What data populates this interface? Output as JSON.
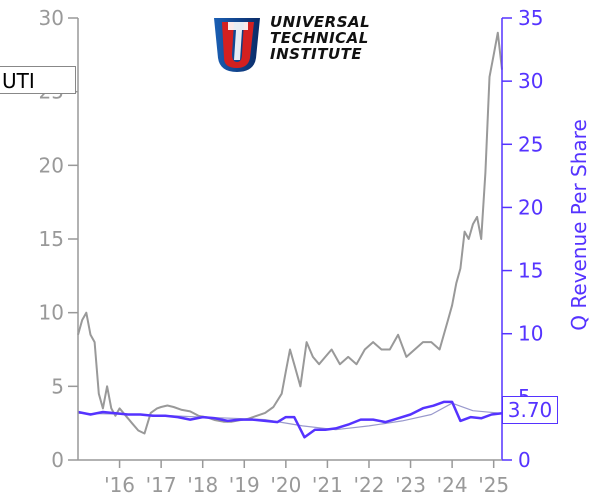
{
  "ticker": "UTI",
  "last_value_label": "3.70",
  "logo": {
    "lines": [
      "UNIVERSAL",
      "TECHNICAL",
      "INSTITUTE"
    ],
    "mark": "U"
  },
  "colors": {
    "price": "#999999",
    "revenue": "#5533ff",
    "revenue_light": "#9999cc"
  },
  "chart_data": {
    "type": "line",
    "title": "",
    "xlabel": "",
    "ylabel_left": "",
    "ylabel_right": "Q Revenue Per Share",
    "x_tick_labels": [
      "'16",
      "'17",
      "'18",
      "'19",
      "'20",
      "'21",
      "'22",
      "'23",
      "'24",
      "'25"
    ],
    "x_range": [
      2015.0,
      2025.2
    ],
    "y_left_range": [
      0,
      30
    ],
    "y_left_ticks": [
      0,
      5,
      10,
      15,
      20,
      25,
      30
    ],
    "y_right_range": [
      0,
      35
    ],
    "y_right_ticks": [
      0,
      5,
      10,
      15,
      20,
      25,
      30,
      35
    ],
    "series": [
      {
        "axis": "left",
        "x": [
          2015.0,
          2015.1,
          2015.2,
          2015.3,
          2015.4,
          2015.5,
          2015.6,
          2015.7,
          2015.8,
          2015.9,
          2016.0,
          2016.15,
          2016.3,
          2016.45,
          2016.6,
          2016.75,
          2016.9,
          2017.0,
          2017.15,
          2017.3,
          2017.5,
          2017.7,
          2017.9,
          2018.1,
          2018.3,
          2018.5,
          2018.7,
          2018.9,
          2019.1,
          2019.3,
          2019.5,
          2019.7,
          2019.9,
          2020.0,
          2020.1,
          2020.2,
          2020.35,
          2020.5,
          2020.65,
          2020.8,
          2020.95,
          2021.1,
          2021.3,
          2021.5,
          2021.7,
          2021.9,
          2022.1,
          2022.3,
          2022.5,
          2022.7,
          2022.9,
          2023.1,
          2023.3,
          2023.5,
          2023.7,
          2023.9,
          2024.0,
          2024.1,
          2024.2,
          2024.3,
          2024.4,
          2024.5,
          2024.6,
          2024.7,
          2024.8,
          2024.9,
          2025.0,
          2025.1,
          2025.2
        ],
        "y": [
          8.5,
          9.5,
          10.0,
          8.5,
          8.0,
          4.5,
          3.5,
          5.0,
          3.5,
          3.0,
          3.5,
          3.0,
          2.5,
          2.0,
          1.8,
          3.2,
          3.5,
          3.6,
          3.7,
          3.6,
          3.4,
          3.3,
          3.0,
          2.9,
          2.7,
          2.6,
          2.6,
          2.7,
          2.8,
          3.0,
          3.2,
          3.6,
          4.5,
          6.0,
          7.5,
          6.5,
          5.0,
          8.0,
          7.0,
          6.5,
          7.0,
          7.5,
          6.5,
          7.0,
          6.5,
          7.5,
          8.0,
          7.5,
          7.5,
          8.5,
          7.0,
          7.5,
          8.0,
          8.0,
          7.5,
          9.5,
          10.5,
          12.0,
          13.0,
          15.5,
          15.0,
          16.0,
          16.5,
          15.0,
          19.5,
          26.0,
          27.5,
          29.0,
          26.5
        ]
      },
      {
        "name": "Q Revenue Per Share",
        "axis": "right",
        "x": [
          2015.0,
          2015.3,
          2015.6,
          2015.9,
          2016.2,
          2016.5,
          2016.8,
          2017.1,
          2017.4,
          2017.7,
          2018.0,
          2018.3,
          2018.6,
          2018.9,
          2019.2,
          2019.5,
          2019.8,
          2020.0,
          2020.2,
          2020.45,
          2020.7,
          2020.95,
          2021.2,
          2021.5,
          2021.8,
          2022.1,
          2022.4,
          2022.7,
          2023.0,
          2023.3,
          2023.55,
          2023.8,
          2024.0,
          2024.2,
          2024.45,
          2024.7,
          2024.95,
          2025.2
        ],
        "y": [
          3.8,
          3.6,
          3.8,
          3.7,
          3.6,
          3.6,
          3.5,
          3.5,
          3.4,
          3.2,
          3.4,
          3.3,
          3.1,
          3.2,
          3.2,
          3.1,
          3.0,
          3.4,
          3.4,
          1.8,
          2.4,
          2.4,
          2.5,
          2.8,
          3.2,
          3.2,
          3.0,
          3.3,
          3.6,
          4.1,
          4.3,
          4.6,
          4.6,
          3.1,
          3.4,
          3.3,
          3.6,
          3.7
        ]
      },
      {
        "axis": "right",
        "style": "trend",
        "x": [
          2015.0,
          2016.5,
          2018.0,
          2019.5,
          2020.4,
          2021.2,
          2022.0,
          2022.8,
          2023.5,
          2024.0,
          2024.5,
          2025.2
        ],
        "y": [
          3.7,
          3.6,
          3.4,
          3.2,
          2.7,
          2.4,
          2.7,
          3.1,
          3.6,
          4.5,
          3.9,
          3.7
        ]
      }
    ]
  }
}
